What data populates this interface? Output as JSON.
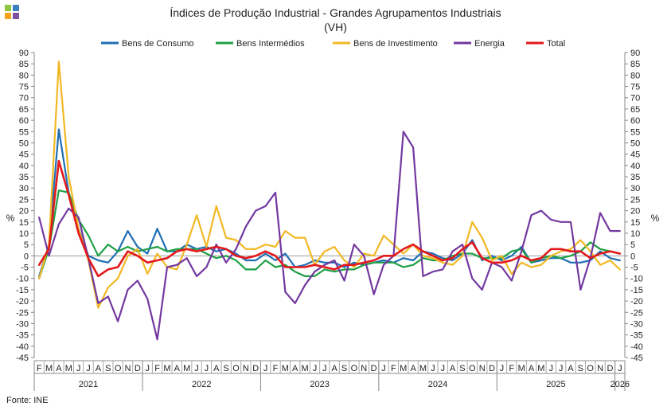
{
  "title_line1": "Índices de Produção Industrial - Grandes Agrupamentos Industriais",
  "title_line2": "(VH)",
  "source": "Fonte: INE",
  "logo_colors": [
    "#8dc63f",
    "#3d7fc1",
    "#f7a21b",
    "#7f4fa0"
  ],
  "chart_data": {
    "type": "line",
    "title": "Índices de Produção Industrial - Grandes Agrupamentos Industriais (VH)",
    "ylabel_left": "%",
    "ylabel_right": "%",
    "ylim": [
      -45,
      90
    ],
    "yticks": [
      -45,
      -40,
      -35,
      -30,
      -25,
      -20,
      -15,
      -10,
      -5,
      0,
      5,
      10,
      15,
      20,
      25,
      30,
      35,
      40,
      45,
      50,
      55,
      60,
      65,
      70,
      75,
      80,
      85,
      90
    ],
    "grid": false,
    "legend_position": "top",
    "month_labels": [
      "F",
      "M",
      "A",
      "M",
      "J",
      "J",
      "A",
      "S",
      "O",
      "N",
      "D",
      "J",
      "F",
      "M",
      "A",
      "M",
      "J",
      "J",
      "A",
      "S",
      "O",
      "N",
      "D",
      "J",
      "F",
      "M",
      "A",
      "M",
      "J",
      "J",
      "A",
      "S",
      "O",
      "N",
      "D",
      "J",
      "F",
      "M",
      "A",
      "M",
      "J",
      "J",
      "A",
      "S",
      "O",
      "N",
      "D",
      "J",
      "F",
      "M",
      "A",
      "M",
      "J",
      "J",
      "A",
      "S",
      "O",
      "N",
      "D",
      "J"
    ],
    "years": [
      {
        "label": "2021",
        "start": 0,
        "end": 10
      },
      {
        "label": "2022",
        "start": 11,
        "end": 22
      },
      {
        "label": "2023",
        "start": 23,
        "end": 34
      },
      {
        "label": "2024",
        "start": 35,
        "end": 46
      },
      {
        "label": "2025",
        "start": 47,
        "end": 58
      },
      {
        "label": "2026",
        "start": 59,
        "end": 59
      }
    ],
    "series": [
      {
        "name": "Bens de Consumo",
        "color": "#1f6fb5",
        "values": [
          -9,
          5,
          56,
          28,
          12,
          0,
          -2,
          -3,
          2,
          11,
          4,
          1,
          12,
          2,
          2,
          5,
          3,
          4,
          2,
          3,
          1,
          -2,
          -2,
          1,
          -2,
          1,
          -5,
          -4,
          -2,
          -3,
          -3,
          -5,
          -3,
          -4,
          -3,
          -2,
          -3,
          -1,
          -2,
          2,
          1,
          -1,
          -2,
          1,
          7,
          -2,
          0,
          -2,
          0,
          4,
          -3,
          -2,
          -1,
          -1,
          -3,
          -3,
          -2,
          2,
          -1,
          -2
        ]
      },
      {
        "name": "Bens Intermédios",
        "color": "#1ea045",
        "values": [
          -10,
          3,
          29,
          28,
          16,
          9,
          0,
          5,
          2,
          4,
          2,
          3,
          4,
          2,
          3,
          3,
          3,
          1,
          -1,
          0,
          -2,
          -6,
          -6,
          -2,
          -5,
          -4,
          -7,
          -9,
          -9,
          -6,
          -7,
          -6,
          -6,
          -4,
          -3,
          -3,
          -3,
          -5,
          -4,
          -1,
          -2,
          -2,
          0,
          1,
          1,
          -1,
          -1,
          -1,
          2,
          3,
          -3,
          -1,
          0,
          -1,
          0,
          2,
          6,
          3,
          2,
          1
        ]
      },
      {
        "name": "Bens de Investimento",
        "color": "#f2b824",
        "values": [
          -10,
          5,
          86,
          35,
          12,
          -2,
          -23,
          -14,
          -10,
          0,
          3,
          -8,
          1,
          -5,
          -6,
          5,
          18,
          4,
          22,
          8,
          7,
          3,
          3,
          5,
          4,
          11,
          8,
          8,
          -4,
          2,
          4,
          -2,
          -5,
          1,
          0,
          9,
          5,
          1,
          5,
          0,
          -1,
          -3,
          -4,
          0,
          15,
          8,
          -2,
          0,
          -8,
          -3,
          -5,
          -4,
          0,
          2,
          3,
          7,
          2,
          -4,
          -2,
          -6
        ]
      },
      {
        "name": "Energia",
        "color": "#7338a0",
        "values": [
          17,
          0,
          14,
          21,
          17,
          -1,
          -21,
          -18,
          -29,
          -15,
          -11,
          -19,
          -37,
          -5,
          -4,
          -1,
          -9,
          -5,
          5,
          -3,
          3,
          13,
          20,
          22,
          28,
          -16,
          -21,
          -13,
          -7,
          -4,
          -2,
          -11,
          5,
          0,
          -17,
          -4,
          0,
          55,
          48,
          -9,
          -7,
          -6,
          2,
          5,
          -10,
          -15,
          -3,
          -5,
          -11,
          2,
          18,
          20,
          16,
          15,
          15,
          -15,
          -1,
          19,
          11,
          11
        ]
      },
      {
        "name": "Total",
        "color": "#e3191c",
        "values": [
          -4,
          3,
          42,
          27,
          10,
          -1,
          -9,
          -6,
          -5,
          2,
          0,
          -3,
          -2,
          -1,
          2,
          3,
          2,
          3,
          4,
          3,
          0,
          -1,
          0,
          2,
          0,
          -5,
          -5,
          -5,
          -4,
          -5,
          -6,
          -4,
          -4,
          -3,
          -2,
          0,
          0,
          3,
          5,
          2,
          0,
          -2,
          -1,
          3,
          6,
          -1,
          -3,
          -3,
          -2,
          0,
          -2,
          -1,
          3,
          3,
          2,
          2,
          -1,
          1,
          2,
          1
        ]
      }
    ]
  }
}
